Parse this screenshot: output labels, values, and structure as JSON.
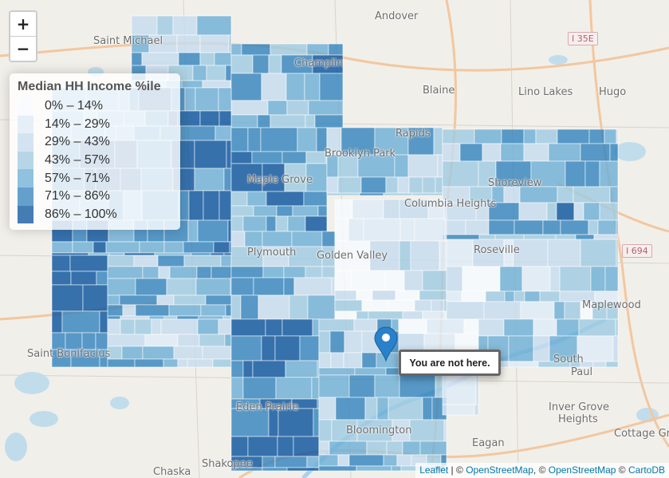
{
  "map": {
    "zoom_in_label": "+",
    "zoom_out_label": "−",
    "places": [
      {
        "id": "andover",
        "text": "Andover"
      },
      {
        "id": "saint-michael",
        "text": "Saint Michael"
      },
      {
        "id": "champlin",
        "text": "Champlin"
      },
      {
        "id": "blaine",
        "text": "Blaine"
      },
      {
        "id": "lino-lakes",
        "text": "Lino Lakes"
      },
      {
        "id": "hugo",
        "text": "Hugo"
      },
      {
        "id": "rapids",
        "text": "Rapids"
      },
      {
        "id": "brooklyn-park",
        "text": "Brooklyn Park"
      },
      {
        "id": "maple-grove",
        "text": "Maple Grove"
      },
      {
        "id": "columbia-heights",
        "text": "Columbia Heights"
      },
      {
        "id": "shoreview",
        "text": "Shoreview"
      },
      {
        "id": "roseville",
        "text": "Roseville"
      },
      {
        "id": "plymouth",
        "text": "Plymouth"
      },
      {
        "id": "golden-valley",
        "text": "Golden Valley"
      },
      {
        "id": "maplewood",
        "text": "Maplewood"
      },
      {
        "id": "saint-bonifacius",
        "text": "Saint Bonifacius"
      },
      {
        "id": "south-saint-paul-1",
        "text": "South"
      },
      {
        "id": "south-saint-paul-2",
        "text": "Paul"
      },
      {
        "id": "inver-grove-heights-1",
        "text": "Inver Grove"
      },
      {
        "id": "inver-grove-heights-2",
        "text": "Heights"
      },
      {
        "id": "cottage-grove",
        "text": "Cottage Grov"
      },
      {
        "id": "eden-prairie",
        "text": "Eden Prairie"
      },
      {
        "id": "bloomington",
        "text": "Bloomington"
      },
      {
        "id": "eagan",
        "text": "Eagan"
      },
      {
        "id": "chaska",
        "text": "Chaska"
      },
      {
        "id": "shakopee",
        "text": "Shakopee"
      }
    ],
    "highways": [
      {
        "id": "i35e",
        "text": "I 35E"
      },
      {
        "id": "i694",
        "text": "I 694"
      }
    ]
  },
  "legend": {
    "title": "Median HH Income %ile",
    "items": [
      {
        "label": "0% – 14%",
        "color": "#f7fbff"
      },
      {
        "label": "14% – 29%",
        "color": "#deebf7"
      },
      {
        "label": "29% – 43%",
        "color": "#c6dbef"
      },
      {
        "label": "43% – 57%",
        "color": "#9ecae1"
      },
      {
        "label": "57% – 71%",
        "color": "#6baed6"
      },
      {
        "label": "71% – 86%",
        "color": "#3182bd"
      },
      {
        "label": "86% – 100%",
        "color": "#08519c"
      }
    ]
  },
  "marker": {
    "popup_text": "You are not here.",
    "color": "#2a81cb"
  },
  "attribution": {
    "leaflet": "Leaflet",
    "separator": " | © ",
    "osm1": "OpenStreetMap",
    "comma": ", © ",
    "osm2": "OpenStreetMap",
    "copy": " © ",
    "carto": "CartoDB"
  }
}
